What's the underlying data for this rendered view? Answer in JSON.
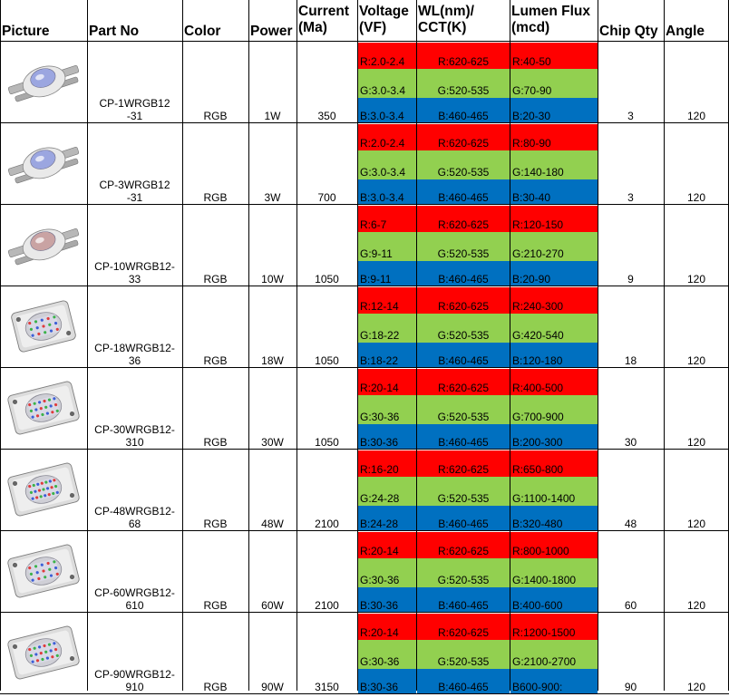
{
  "headers": {
    "picture": "Picture",
    "part_no": "Part No",
    "color": "Color",
    "power": "Power",
    "current": "Current\n(Ma)",
    "voltage": "Voltage\n(VF)",
    "wl": "WL(nm)/\nCCT(K)",
    "lumen": "Lumen Flux\n(mcd)",
    "chip_qty": "Chip Qty",
    "angle": "Angle"
  },
  "rows": [
    {
      "part_no": "CP-1WRGB12\n-31",
      "color": "RGB",
      "power": "1W",
      "current": "350",
      "vf": [
        "R:2.0-2.4",
        "G:3.0-3.4",
        "B:3.0-3.4"
      ],
      "wl": [
        "R:620-625",
        "G:520-535",
        "B:460-465"
      ],
      "lumen": [
        "R:40-50",
        "G:70-90",
        "B:20-30"
      ],
      "chip_qty": "3",
      "angle": "120",
      "picture_icon": "led-1w-star-icon"
    },
    {
      "part_no": "CP-3WRGB12\n-31",
      "color": "RGB",
      "power": "3W",
      "current": "700",
      "vf": [
        "R:2.0-2.4",
        "G:3.0-3.4",
        "B:3.0-3.4"
      ],
      "wl": [
        "R:620-625",
        "G:520-535",
        "B:460-465"
      ],
      "lumen": [
        "R:80-90",
        "G:140-180",
        "B:30-40"
      ],
      "chip_qty": "3",
      "angle": "120",
      "picture_icon": "led-3w-star-icon"
    },
    {
      "part_no": "CP-10WRGB12-\n33",
      "color": "RGB",
      "power": "10W",
      "current": "1050",
      "vf": [
        "R:6-7",
        "G:9-11",
        "B:9-11"
      ],
      "wl": [
        "R:620-625",
        "G:520-535",
        "B:460-465"
      ],
      "lumen": [
        "R:120-150",
        "G:210-270",
        "B:20-90"
      ],
      "chip_qty": "9",
      "angle": "120",
      "picture_icon": "led-10w-icon"
    },
    {
      "part_no": "CP-18WRGB12-\n36",
      "color": "RGB",
      "power": "18W",
      "current": "1050",
      "vf": [
        "R:12-14",
        "G:18-22",
        "B:18-22"
      ],
      "wl": [
        "R:620-625",
        "G:520-535",
        "B:460-465"
      ],
      "lumen": [
        "R:240-300",
        "G:420-540",
        "B:120-180"
      ],
      "chip_qty": "18",
      "angle": "120",
      "picture_icon": "led-cob-18w-icon"
    },
    {
      "part_no": "CP-30WRGB12-\n310",
      "color": "RGB",
      "power": "30W",
      "current": "1050",
      "vf": [
        "R:20-14",
        "G:30-36",
        "B:30-36"
      ],
      "wl": [
        "R:620-625",
        "G:520-535",
        "B:460-465"
      ],
      "lumen": [
        "R:400-500",
        "G:700-900",
        "B:200-300"
      ],
      "chip_qty": "30",
      "angle": "120",
      "picture_icon": "led-cob-30w-icon"
    },
    {
      "part_no": "CP-48WRGB12-\n68",
      "color": "RGB",
      "power": "48W",
      "current": "2100",
      "vf": [
        "R:16-20",
        "G:24-28",
        "B:24-28"
      ],
      "wl": [
        "R:620-625",
        "G:520-535",
        "B:460-465"
      ],
      "lumen": [
        "R:650-800",
        "G:1100-1400",
        "B:320-480"
      ],
      "chip_qty": "48",
      "angle": "120",
      "picture_icon": "led-cob-48w-icon"
    },
    {
      "part_no": "CP-60WRGB12-\n610",
      "color": "RGB",
      "power": "60W",
      "current": "2100",
      "vf": [
        "R:20-14",
        "G:30-36",
        "B:30-36"
      ],
      "wl": [
        "R:620-625",
        "G:520-535",
        "B:460-465"
      ],
      "lumen": [
        "R:800-1000",
        "G:1400-1800",
        "B:400-600"
      ],
      "chip_qty": "60",
      "angle": "120",
      "picture_icon": "led-cob-60w-icon"
    },
    {
      "part_no": "CP-90WRGB12-\n910",
      "color": "RGB",
      "power": "90W",
      "current": "3150",
      "vf": [
        "R:20-14",
        "G:30-36",
        "B:30-36"
      ],
      "wl": [
        "R:620-625",
        "G:520-535",
        "B:460-465"
      ],
      "lumen": [
        "R:1200-1500",
        "G:2100-2700",
        "B600-900:"
      ],
      "chip_qty": "90",
      "angle": "120",
      "picture_icon": "led-cob-90w-icon"
    }
  ],
  "colors": {
    "red_band": "#ff0000",
    "green_band": "#92d050",
    "blue_band": "#0070c0",
    "grid": "#000000"
  }
}
